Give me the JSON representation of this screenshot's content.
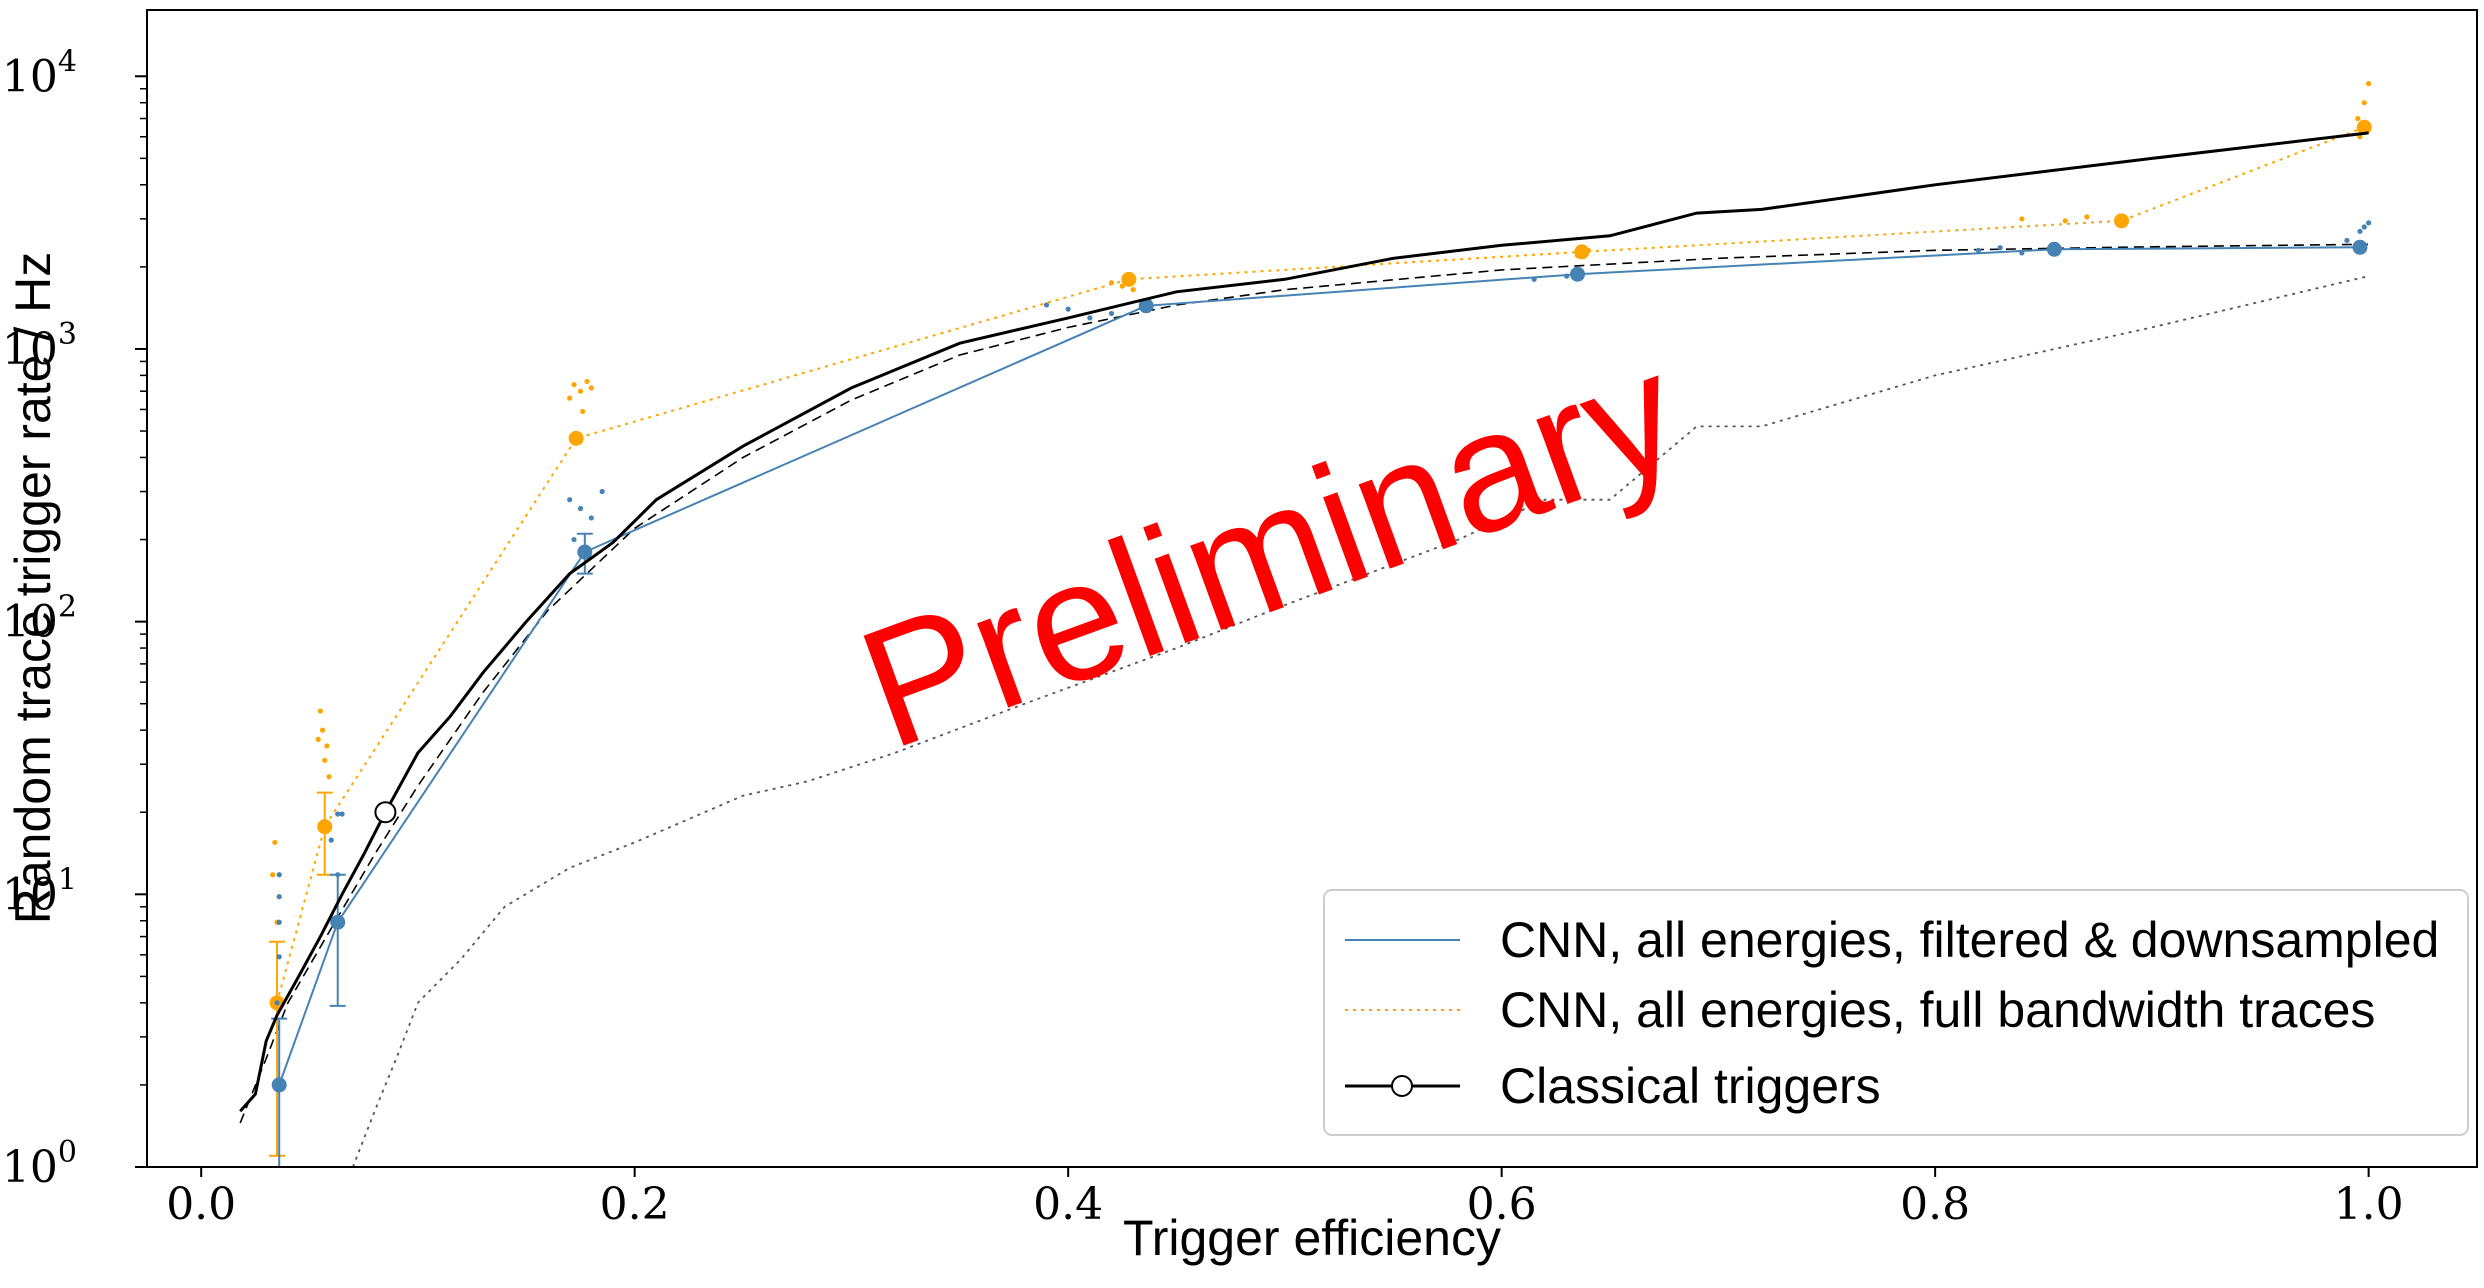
{
  "chart_data": {
    "type": "line",
    "xlabel": "Trigger efficiency",
    "ylabel": "Random trace trigger rate / Hz",
    "xlim": [
      -0.025,
      1.05
    ],
    "ylim": [
      1,
      17500
    ],
    "yscale": "log",
    "x_ticks": [
      {
        "value": 0.0,
        "label": "0.0"
      },
      {
        "value": 0.2,
        "label": "0.2"
      },
      {
        "value": 0.4,
        "label": "0.4"
      },
      {
        "value": 0.6,
        "label": "0.6"
      },
      {
        "value": 0.8,
        "label": "0.8"
      },
      {
        "value": 1.0,
        "label": "1.0"
      }
    ],
    "y_ticks": [
      {
        "value": 1,
        "base": "10",
        "exp": "0"
      },
      {
        "value": 10,
        "base": "10",
        "exp": "1"
      },
      {
        "value": 100,
        "base": "10",
        "exp": "2"
      },
      {
        "value": 1000,
        "base": "10",
        "exp": "3"
      },
      {
        "value": 10000,
        "base": "10",
        "exp": "4"
      }
    ],
    "grid": false,
    "legend_position": "bottom-right",
    "colors": {
      "blue": "#4682b4",
      "orange": "#ffa500",
      "black": "#000000",
      "grey": "#555555",
      "watermark": "#ff0000"
    },
    "series": [
      {
        "name": "CNN, all energies, filtered & downsampled",
        "style": "solid",
        "color": "#4682b4",
        "points": [
          [
            0.036,
            2.0
          ],
          [
            0.063,
            7.9
          ],
          [
            0.177,
            180
          ],
          [
            0.436,
            1440
          ],
          [
            0.635,
            1880
          ],
          [
            0.855,
            2320
          ],
          [
            0.996,
            2360
          ]
        ],
        "error_bars": [
          [
            0.036,
            0.5,
            3.5
          ],
          [
            0.063,
            3.9,
            11.8
          ],
          [
            0.177,
            150,
            210
          ]
        ],
        "scatter": [
          [
            0.036,
            7.9
          ],
          [
            0.036,
            11.8
          ],
          [
            0.036,
            9.8
          ],
          [
            0.036,
            5.9
          ],
          [
            0.035,
            4.0
          ],
          [
            0.063,
            11.8
          ],
          [
            0.063,
            19.7
          ],
          [
            0.065,
            19.7
          ],
          [
            0.06,
            15.8
          ],
          [
            0.17,
            280
          ],
          [
            0.175,
            260
          ],
          [
            0.18,
            240
          ],
          [
            0.185,
            300
          ],
          [
            0.172,
            200
          ],
          [
            0.39,
            1450
          ],
          [
            0.4,
            1400
          ],
          [
            0.42,
            1350
          ],
          [
            0.41,
            1300
          ],
          [
            0.615,
            1800
          ],
          [
            0.63,
            1850
          ],
          [
            0.82,
            2300
          ],
          [
            0.83,
            2350
          ],
          [
            0.84,
            2250
          ],
          [
            0.99,
            2500
          ],
          [
            0.996,
            2700
          ],
          [
            0.998,
            2800
          ],
          [
            1.0,
            2900
          ]
        ]
      },
      {
        "name": "CNN, all energies, full bandwidth traces",
        "style": "dotted",
        "color": "#ffa500",
        "points": [
          [
            0.035,
            4.0
          ],
          [
            0.057,
            17.7
          ],
          [
            0.173,
            470
          ],
          [
            0.428,
            1800
          ],
          [
            0.637,
            2270
          ],
          [
            0.886,
            2950
          ],
          [
            0.998,
            6500
          ]
        ],
        "error_bars": [
          [
            0.035,
            1.1,
            6.7
          ],
          [
            0.057,
            11.8,
            23.6
          ]
        ],
        "scatter": [
          [
            0.034,
            15.5
          ],
          [
            0.033,
            11.8
          ],
          [
            0.035,
            7.9
          ],
          [
            0.036,
            9.8
          ],
          [
            0.055,
            47
          ],
          [
            0.056,
            40
          ],
          [
            0.058,
            35
          ],
          [
            0.057,
            31
          ],
          [
            0.059,
            27
          ],
          [
            0.054,
            37
          ],
          [
            0.172,
            740
          ],
          [
            0.175,
            700
          ],
          [
            0.178,
            760
          ],
          [
            0.18,
            720
          ],
          [
            0.17,
            660
          ],
          [
            0.176,
            590
          ],
          [
            0.425,
            1700
          ],
          [
            0.42,
            1750
          ],
          [
            0.43,
            1650
          ],
          [
            0.635,
            2200
          ],
          [
            0.64,
            2300
          ],
          [
            0.84,
            3000
          ],
          [
            0.86,
            2950
          ],
          [
            0.87,
            3050
          ],
          [
            0.995,
            7000
          ],
          [
            0.998,
            8000
          ],
          [
            1.0,
            9400
          ],
          [
            0.996,
            6000
          ]
        ]
      },
      {
        "name": "Classical triggers",
        "style": "solid",
        "color": "#000000",
        "marker_point": [
          0.085,
          20
        ],
        "points": [
          [
            0.018,
            1.6
          ],
          [
            0.025,
            1.85
          ],
          [
            0.03,
            2.9
          ],
          [
            0.035,
            3.6
          ],
          [
            0.045,
            5.0
          ],
          [
            0.055,
            7.0
          ],
          [
            0.065,
            10
          ],
          [
            0.075,
            14
          ],
          [
            0.085,
            20
          ],
          [
            0.1,
            33
          ],
          [
            0.115,
            45
          ],
          [
            0.13,
            65
          ],
          [
            0.15,
            100
          ],
          [
            0.17,
            150
          ],
          [
            0.19,
            195
          ],
          [
            0.21,
            280
          ],
          [
            0.25,
            440
          ],
          [
            0.3,
            720
          ],
          [
            0.35,
            1050
          ],
          [
            0.4,
            1300
          ],
          [
            0.45,
            1620
          ],
          [
            0.5,
            1800
          ],
          [
            0.55,
            2150
          ],
          [
            0.6,
            2400
          ],
          [
            0.65,
            2600
          ],
          [
            0.69,
            3150
          ],
          [
            0.72,
            3250
          ],
          [
            0.8,
            4000
          ],
          [
            0.9,
            5000
          ],
          [
            1.0,
            6200
          ]
        ]
      },
      {
        "name": "",
        "style": "dashed",
        "color": "#000000",
        "points": [
          [
            0.018,
            1.45
          ],
          [
            0.03,
            2.5
          ],
          [
            0.04,
            4.0
          ],
          [
            0.06,
            7.5
          ],
          [
            0.08,
            14
          ],
          [
            0.1,
            25
          ],
          [
            0.13,
            55
          ],
          [
            0.16,
            110
          ],
          [
            0.2,
            220
          ],
          [
            0.25,
            400
          ],
          [
            0.3,
            650
          ],
          [
            0.35,
            950
          ],
          [
            0.4,
            1200
          ],
          [
            0.45,
            1450
          ],
          [
            0.5,
            1650
          ],
          [
            0.6,
            1950
          ],
          [
            0.7,
            2150
          ],
          [
            0.8,
            2300
          ],
          [
            0.9,
            2370
          ],
          [
            1.0,
            2420
          ]
        ]
      },
      {
        "name": "",
        "style": "dotted",
        "color": "#555555",
        "points": [
          [
            0.07,
            1.0
          ],
          [
            0.08,
            1.6
          ],
          [
            0.09,
            2.5
          ],
          [
            0.1,
            4.0
          ],
          [
            0.12,
            5.8
          ],
          [
            0.14,
            9.0
          ],
          [
            0.17,
            12.5
          ],
          [
            0.2,
            15.5
          ],
          [
            0.25,
            23
          ],
          [
            0.28,
            26
          ],
          [
            0.32,
            33
          ],
          [
            0.38,
            50
          ],
          [
            0.45,
            80
          ],
          [
            0.5,
            115
          ],
          [
            0.58,
            200
          ],
          [
            0.62,
            280
          ],
          [
            0.65,
            280
          ],
          [
            0.69,
            520
          ],
          [
            0.72,
            520
          ],
          [
            0.8,
            800
          ],
          [
            0.9,
            1200
          ],
          [
            1.0,
            1850
          ]
        ]
      }
    ],
    "legend": [
      {
        "label": "CNN, all energies, filtered & downsampled",
        "series": 0
      },
      {
        "label": "CNN, all energies, full bandwidth traces",
        "series": 1
      },
      {
        "label": "Classical triggers",
        "series": 2
      }
    ],
    "annotations": [
      {
        "text": "Preliminary",
        "color": "#ff0000"
      }
    ]
  }
}
